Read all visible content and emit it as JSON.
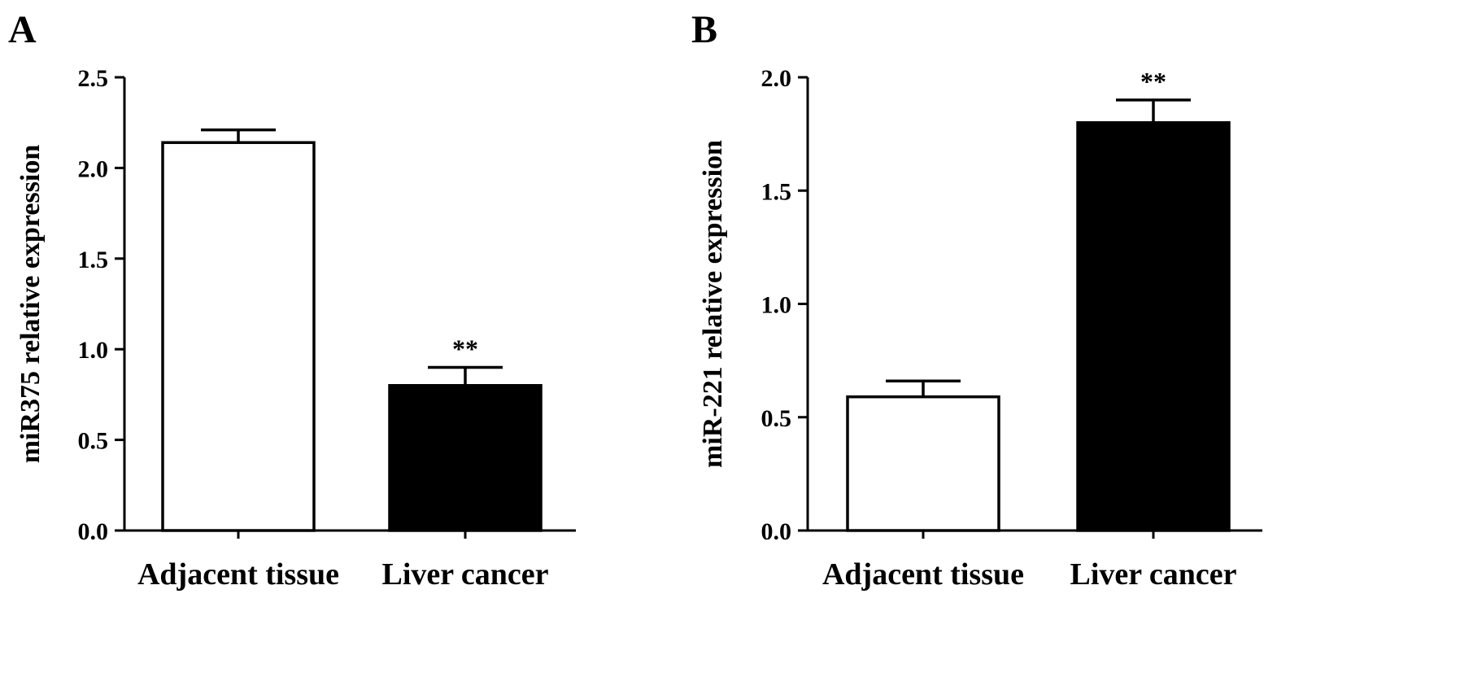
{
  "chart_data": [
    {
      "type": "bar",
      "panel": "A",
      "categories": [
        "Adjacent tissue",
        "Liver cancer"
      ],
      "values": [
        2.14,
        0.8
      ],
      "errors": [
        0.07,
        0.1
      ],
      "significance": [
        "",
        "**"
      ],
      "bar_fills": [
        "#ffffff",
        "#000000"
      ],
      "ylabel": "miR375 relative expression",
      "ylim": [
        0,
        2.5
      ],
      "yticks": [
        "0.0",
        "0.5",
        "1.0",
        "1.5",
        "2.0",
        "2.5"
      ],
      "grid": false
    },
    {
      "type": "bar",
      "panel": "B",
      "categories": [
        "Adjacent tissue",
        "Liver cancer"
      ],
      "values": [
        0.59,
        1.8
      ],
      "errors": [
        0.07,
        0.1
      ],
      "significance": [
        "",
        "**"
      ],
      "bar_fills": [
        "#ffffff",
        "#000000"
      ],
      "ylabel": "miR-221 relative expression",
      "ylim": [
        0,
        2.0
      ],
      "yticks": [
        "0.0",
        "0.5",
        "1.0",
        "1.5",
        "2.0"
      ],
      "grid": false
    }
  ]
}
